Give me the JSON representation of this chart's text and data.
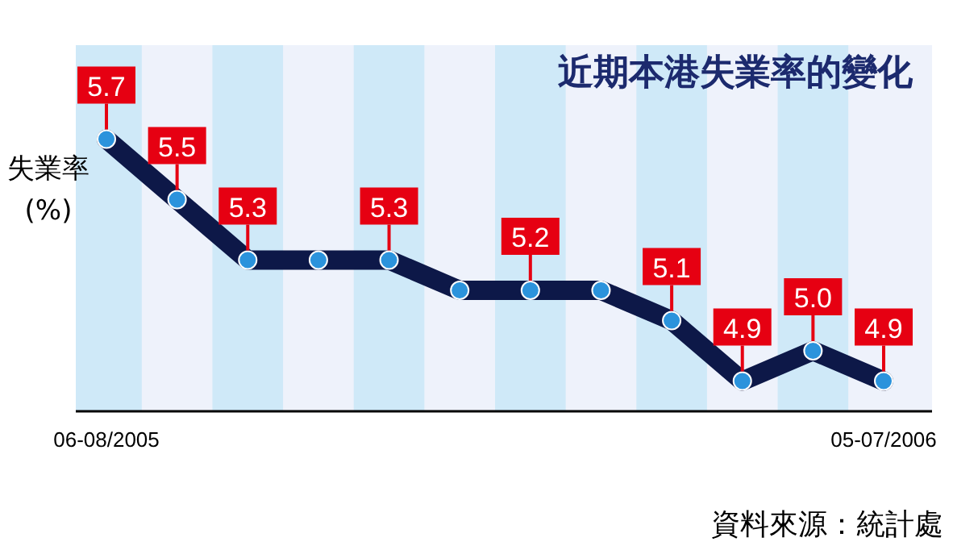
{
  "chart_data": {
    "type": "line",
    "title": "近期本港失業率的變化",
    "ylabel": "失業率\n(%)",
    "annotations": [
      "資料來源：統計處"
    ],
    "categories": [
      "06-08/2005",
      null,
      null,
      null,
      null,
      null,
      null,
      null,
      null,
      null,
      null,
      "05-07/2006"
    ],
    "series": [
      {
        "color": "#0d1848",
        "values": [
          5.7,
          5.5,
          5.3,
          5.3,
          5.3,
          5.2,
          5.2,
          5.2,
          5.1,
          4.9,
          5.0,
          4.9
        ],
        "value_labels": [
          "5.7",
          "5.5",
          "5.3",
          null,
          "5.3",
          null,
          "5.2",
          null,
          "5.1",
          "4.9",
          "5.0",
          "4.9"
        ]
      }
    ],
    "tick_labels": "x",
    "marker": "circle",
    "line_style": "solid"
  }
}
